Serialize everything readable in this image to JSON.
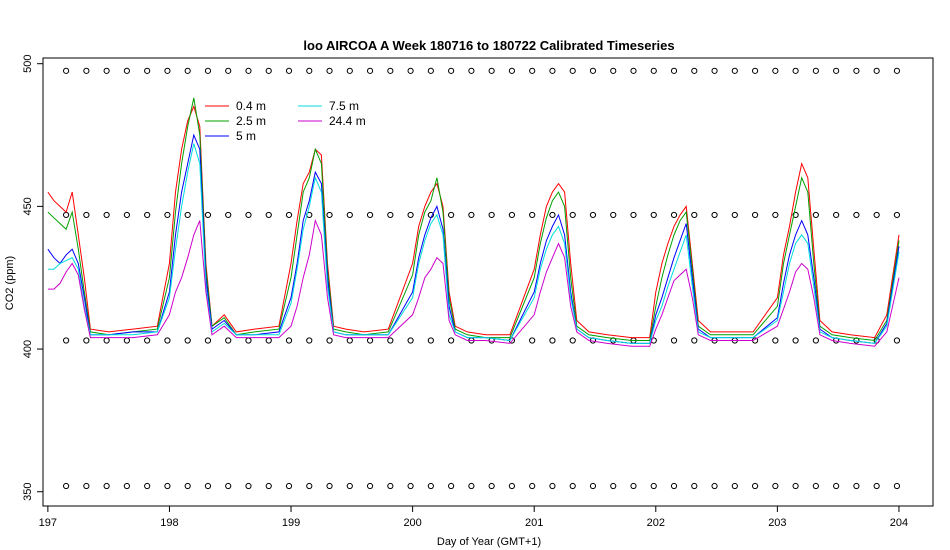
{
  "chart_data": {
    "type": "line",
    "title": "loo AIRCOA A  Week 180716 to 180722  Calibrated Timeseries",
    "xlabel": "Day of Year (GMT+1)",
    "ylabel": "CO2 (ppm)",
    "xlim": [
      196.96,
      204.28
    ],
    "ylim": [
      345,
      502
    ],
    "xticks": [
      197,
      198,
      199,
      200,
      201,
      202,
      203,
      204
    ],
    "yticks": [
      350,
      400,
      450,
      500
    ],
    "grid": false,
    "legend_position": "top-left",
    "series": [
      {
        "name": "0.4 m",
        "color": "#ff0000",
        "x": [
          197.0,
          197.05,
          197.1,
          197.15,
          197.2,
          197.25,
          197.3,
          197.35,
          197.5,
          197.7,
          197.9,
          198.0,
          198.05,
          198.1,
          198.15,
          198.2,
          198.25,
          198.3,
          198.35,
          198.45,
          198.55,
          198.7,
          198.9,
          199.0,
          199.05,
          199.1,
          199.15,
          199.2,
          199.25,
          199.3,
          199.35,
          199.45,
          199.6,
          199.8,
          200.0,
          200.05,
          200.1,
          200.15,
          200.2,
          200.25,
          200.3,
          200.35,
          200.45,
          200.6,
          200.8,
          201.0,
          201.05,
          201.1,
          201.15,
          201.2,
          201.25,
          201.3,
          201.35,
          201.45,
          201.6,
          201.8,
          201.95,
          202.0,
          202.05,
          202.1,
          202.15,
          202.2,
          202.25,
          202.3,
          202.35,
          202.45,
          202.6,
          202.8,
          203.0,
          203.05,
          203.1,
          203.15,
          203.2,
          203.25,
          203.3,
          203.35,
          203.45,
          203.6,
          203.8,
          203.9,
          204.0
        ],
        "y": [
          455,
          452,
          450,
          448,
          455,
          440,
          425,
          407,
          406,
          407,
          408,
          430,
          455,
          470,
          480,
          485,
          478,
          430,
          408,
          412,
          406,
          407,
          408,
          430,
          445,
          458,
          462,
          470,
          468,
          430,
          408,
          407,
          406,
          407,
          430,
          443,
          450,
          455,
          458,
          450,
          420,
          408,
          406,
          405,
          405,
          428,
          440,
          450,
          455,
          458,
          455,
          430,
          410,
          406,
          405,
          404,
          404,
          420,
          430,
          437,
          443,
          447,
          450,
          430,
          410,
          406,
          406,
          406,
          418,
          433,
          443,
          455,
          465,
          460,
          435,
          410,
          406,
          405,
          404,
          412,
          440
        ]
      },
      {
        "name": "2.5 m",
        "color": "#00a000",
        "x": [
          197.0,
          197.05,
          197.1,
          197.15,
          197.2,
          197.25,
          197.3,
          197.35,
          197.5,
          197.7,
          197.9,
          198.0,
          198.05,
          198.1,
          198.15,
          198.2,
          198.25,
          198.3,
          198.35,
          198.45,
          198.55,
          198.7,
          198.9,
          199.0,
          199.05,
          199.1,
          199.15,
          199.2,
          199.25,
          199.3,
          199.35,
          199.45,
          199.6,
          199.8,
          200.0,
          200.05,
          200.1,
          200.15,
          200.2,
          200.25,
          200.3,
          200.35,
          200.45,
          200.6,
          200.8,
          201.0,
          201.05,
          201.1,
          201.15,
          201.2,
          201.25,
          201.3,
          201.35,
          201.45,
          201.6,
          201.8,
          201.95,
          202.0,
          202.05,
          202.1,
          202.15,
          202.2,
          202.25,
          202.3,
          202.35,
          202.45,
          202.6,
          202.8,
          203.0,
          203.05,
          203.1,
          203.15,
          203.2,
          203.25,
          203.3,
          203.35,
          203.45,
          203.6,
          203.8,
          203.9,
          204.0
        ],
        "y": [
          448,
          446,
          444,
          442,
          448,
          435,
          420,
          406,
          405,
          406,
          407,
          425,
          448,
          465,
          478,
          488,
          475,
          428,
          408,
          411,
          405,
          406,
          407,
          425,
          440,
          455,
          460,
          470,
          465,
          428,
          407,
          406,
          405,
          406,
          426,
          440,
          448,
          452,
          460,
          448,
          418,
          407,
          405,
          404,
          404,
          425,
          437,
          446,
          452,
          455,
          450,
          425,
          408,
          405,
          404,
          403,
          403,
          415,
          425,
          433,
          440,
          445,
          448,
          428,
          408,
          405,
          405,
          405,
          415,
          430,
          440,
          450,
          460,
          455,
          430,
          408,
          405,
          404,
          403,
          410,
          438
        ]
      },
      {
        "name": "5 m",
        "color": "#0000ff",
        "x": [
          197.0,
          197.05,
          197.1,
          197.15,
          197.2,
          197.25,
          197.3,
          197.35,
          197.5,
          197.7,
          197.9,
          198.0,
          198.05,
          198.1,
          198.15,
          198.2,
          198.25,
          198.3,
          198.35,
          198.45,
          198.55,
          198.7,
          198.9,
          199.0,
          199.05,
          199.1,
          199.15,
          199.2,
          199.25,
          199.3,
          199.35,
          199.45,
          199.6,
          199.8,
          200.0,
          200.05,
          200.1,
          200.15,
          200.2,
          200.25,
          200.3,
          200.35,
          200.45,
          200.6,
          200.8,
          201.0,
          201.05,
          201.1,
          201.15,
          201.2,
          201.25,
          201.3,
          201.35,
          201.45,
          201.6,
          201.8,
          201.95,
          202.0,
          202.05,
          202.1,
          202.15,
          202.2,
          202.25,
          202.3,
          202.35,
          202.45,
          202.6,
          202.8,
          203.0,
          203.05,
          203.1,
          203.15,
          203.2,
          203.25,
          203.3,
          203.35,
          203.45,
          203.6,
          203.8,
          203.9,
          204.0
        ],
        "y": [
          435,
          432,
          430,
          433,
          435,
          430,
          418,
          405,
          405,
          406,
          406,
          420,
          440,
          455,
          465,
          475,
          470,
          425,
          407,
          410,
          405,
          405,
          406,
          418,
          430,
          445,
          452,
          462,
          458,
          425,
          406,
          405,
          405,
          405,
          420,
          432,
          440,
          446,
          450,
          442,
          415,
          406,
          404,
          404,
          403,
          420,
          430,
          438,
          443,
          447,
          440,
          420,
          407,
          404,
          403,
          402,
          402,
          412,
          418,
          425,
          432,
          438,
          444,
          425,
          407,
          404,
          404,
          404,
          411,
          423,
          433,
          440,
          445,
          440,
          425,
          407,
          404,
          403,
          402,
          409,
          436
        ]
      },
      {
        "name": "7.5 m",
        "color": "#00dddd",
        "x": [
          197.0,
          197.05,
          197.1,
          197.15,
          197.2,
          197.25,
          197.3,
          197.35,
          197.5,
          197.7,
          197.9,
          198.0,
          198.05,
          198.1,
          198.15,
          198.2,
          198.25,
          198.3,
          198.35,
          198.45,
          198.55,
          198.7,
          198.9,
          199.0,
          199.05,
          199.1,
          199.15,
          199.2,
          199.25,
          199.3,
          199.35,
          199.45,
          199.6,
          199.8,
          200.0,
          200.05,
          200.1,
          200.15,
          200.2,
          200.25,
          200.3,
          200.35,
          200.45,
          200.6,
          200.8,
          201.0,
          201.05,
          201.1,
          201.15,
          201.2,
          201.25,
          201.3,
          201.35,
          201.45,
          201.6,
          201.8,
          201.95,
          202.0,
          202.05,
          202.1,
          202.15,
          202.2,
          202.25,
          202.3,
          202.35,
          202.45,
          202.6,
          202.8,
          203.0,
          203.05,
          203.1,
          203.15,
          203.2,
          203.25,
          203.3,
          203.35,
          203.45,
          203.6,
          203.8,
          203.9,
          204.0
        ],
        "y": [
          428,
          428,
          430,
          431,
          432,
          428,
          415,
          405,
          405,
          405,
          406,
          418,
          435,
          450,
          462,
          472,
          465,
          422,
          406,
          409,
          405,
          405,
          405,
          416,
          428,
          442,
          450,
          460,
          455,
          422,
          406,
          405,
          405,
          405,
          418,
          430,
          438,
          444,
          447,
          440,
          412,
          406,
          404,
          404,
          403,
          418,
          428,
          435,
          440,
          443,
          437,
          418,
          407,
          404,
          403,
          402,
          402,
          410,
          415,
          422,
          428,
          434,
          440,
          422,
          406,
          404,
          404,
          404,
          410,
          420,
          430,
          437,
          440,
          437,
          422,
          406,
          404,
          403,
          402,
          408,
          434
        ]
      },
      {
        "name": "24.4 m",
        "color": "#cc00cc",
        "x": [
          197.0,
          197.05,
          197.1,
          197.15,
          197.2,
          197.25,
          197.3,
          197.35,
          197.5,
          197.7,
          197.9,
          198.0,
          198.05,
          198.1,
          198.15,
          198.2,
          198.25,
          198.3,
          198.35,
          198.45,
          198.55,
          198.7,
          198.9,
          199.0,
          199.05,
          199.1,
          199.15,
          199.2,
          199.25,
          199.3,
          199.35,
          199.45,
          199.6,
          199.8,
          200.0,
          200.05,
          200.1,
          200.15,
          200.2,
          200.25,
          200.3,
          200.35,
          200.45,
          200.6,
          200.8,
          201.0,
          201.05,
          201.1,
          201.15,
          201.2,
          201.25,
          201.3,
          201.35,
          201.45,
          201.6,
          201.8,
          201.95,
          202.0,
          202.05,
          202.1,
          202.15,
          202.2,
          202.25,
          202.3,
          202.35,
          202.45,
          202.6,
          202.8,
          203.0,
          203.05,
          203.1,
          203.15,
          203.2,
          203.25,
          203.3,
          203.35,
          203.45,
          203.6,
          203.8,
          203.9,
          204.0
        ],
        "y": [
          421,
          421,
          423,
          427,
          430,
          426,
          414,
          404,
          404,
          404,
          405,
          412,
          420,
          425,
          432,
          440,
          445,
          420,
          405,
          408,
          404,
          404,
          404,
          408,
          415,
          425,
          433,
          445,
          440,
          418,
          405,
          404,
          404,
          404,
          412,
          418,
          425,
          428,
          432,
          430,
          410,
          405,
          403,
          403,
          402,
          412,
          420,
          427,
          432,
          437,
          432,
          415,
          406,
          403,
          402,
          401,
          401,
          407,
          412,
          418,
          424,
          426,
          428,
          418,
          405,
          403,
          403,
          403,
          408,
          414,
          420,
          427,
          430,
          428,
          418,
          405,
          403,
          402,
          401,
          406,
          425
        ]
      }
    ],
    "reference_markers": [
      {
        "y": 497.5,
        "marker": "open-circle"
      },
      {
        "y": 447,
        "marker": "open-circle"
      },
      {
        "y": 403,
        "marker": "open-circle"
      },
      {
        "y": 352,
        "marker": "open-circle"
      }
    ]
  }
}
